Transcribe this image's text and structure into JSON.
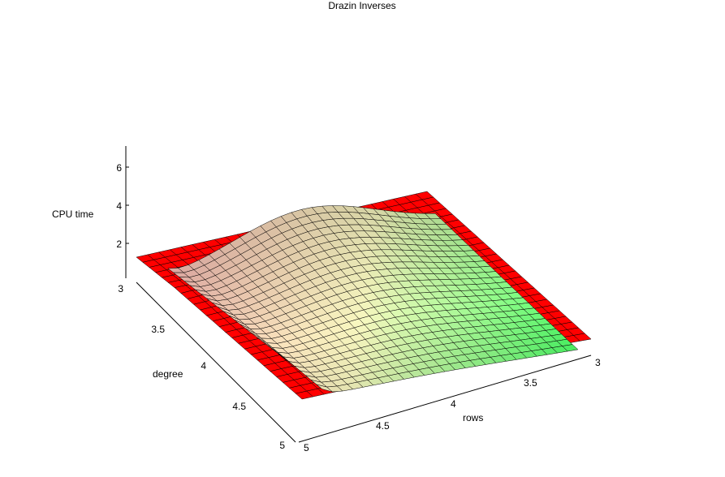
{
  "chart_data": {
    "type": "surface",
    "title": "Drazin Inverses",
    "axes": {
      "z": {
        "label": "CPU time",
        "ticks": [
          "2",
          "4",
          "6"
        ]
      },
      "degree": {
        "label": "degree",
        "ticks": [
          "3",
          "3.5",
          "4",
          "4.5",
          "5"
        ]
      },
      "rows": {
        "label": "rows",
        "ticks": [
          "3",
          "3.5",
          "4",
          "4.5",
          "5"
        ]
      }
    },
    "rows_range": [
      3,
      5
    ],
    "degree_range": [
      3,
      5
    ],
    "zlim": [
      0,
      7
    ],
    "surfaces": [
      {
        "id": "surface-red",
        "color": "#ff0000",
        "z_description": "near-flat sheet"
      },
      {
        "id": "surface-gradient",
        "colors": [
          "#ffc0c0",
          "#fffff0",
          "#40ff60"
        ],
        "z_description": "curved sheet"
      }
    ],
    "grid": true,
    "colors": {
      "surface_red": "#ff0000",
      "gradient_start": "#ffb8b8",
      "gradient_mid": "#f8f8c0",
      "gradient_end": "#40ff60",
      "mesh": "#000000"
    }
  }
}
